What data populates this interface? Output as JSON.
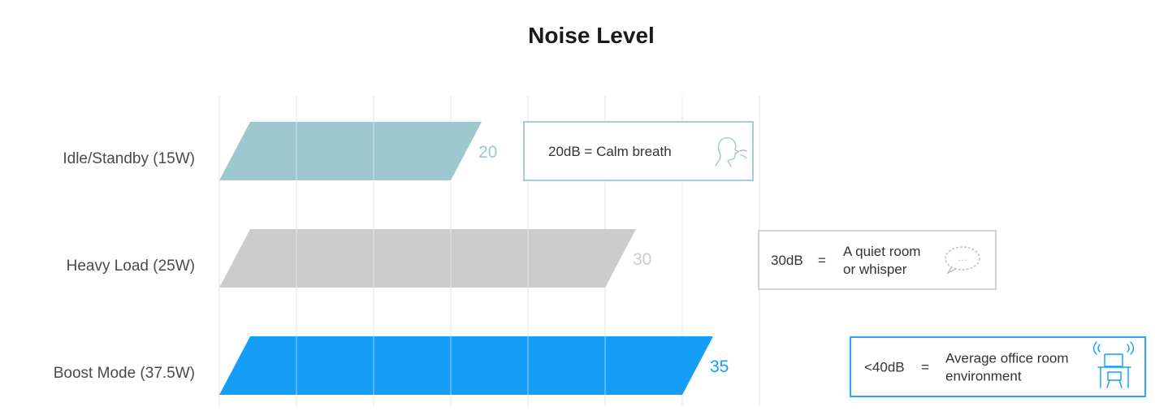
{
  "colors": {
    "idle": "#9ec8d0",
    "heavy": "#cccccc",
    "boost": "#169df5",
    "grid": "#e6e6e6",
    "divider": "#ffffff"
  },
  "chart_data": {
    "type": "bar",
    "orientation": "horizontal",
    "title": "Noise Level",
    "categories": [
      "Idle/Standby (15W)",
      "Heavy Load (25W)",
      "Boost Mode (37.5W)"
    ],
    "values": [
      20,
      30,
      35
    ],
    "value_labels": [
      "20",
      "30",
      "35"
    ],
    "xlim": [
      5,
      40
    ],
    "grid": true,
    "bar_colors": [
      "#9ec8d0",
      "#cccccc",
      "#169df5"
    ],
    "annotations": [
      {
        "lines": [
          "20dB = Calm breath"
        ],
        "icon": "breathing-face-icon"
      },
      {
        "prefix": "30dB",
        "eq": "=",
        "lines": [
          "A quiet room",
          "or whisper"
        ],
        "icon": "speech-bubble-icon"
      },
      {
        "prefix": "<40dB",
        "eq": "=",
        "lines": [
          "Average office room",
          "environment"
        ],
        "icon": "office-desk-icon"
      }
    ]
  }
}
